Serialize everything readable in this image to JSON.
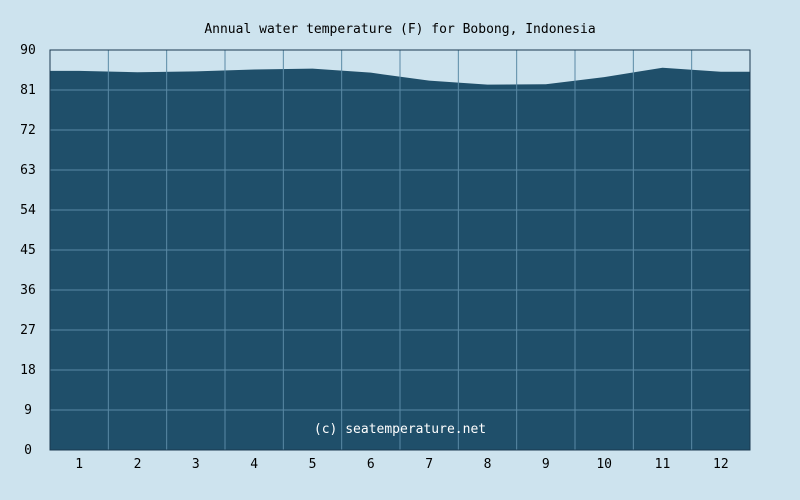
{
  "chart_data": {
    "type": "area",
    "title": "Annual water temperature (F) for Bobong, Indonesia",
    "watermark": "(c) seatemperature.net",
    "x": [
      1,
      2,
      3,
      4,
      5,
      6,
      7,
      8,
      9,
      10,
      11,
      12
    ],
    "x_tick_labels": [
      "1",
      "2",
      "3",
      "4",
      "5",
      "6",
      "7",
      "8",
      "9",
      "10",
      "11",
      "12"
    ],
    "y_ticks": [
      0,
      9,
      18,
      27,
      36,
      45,
      54,
      63,
      72,
      81,
      90
    ],
    "ylim": [
      0,
      90
    ],
    "series": [
      {
        "values": [
          85.3,
          85.0,
          85.2,
          85.6,
          85.8,
          84.9,
          83.1,
          82.2,
          82.3,
          83.9,
          86.0,
          85.1
        ]
      }
    ],
    "colors": {
      "background": "#cde3ee",
      "fill": "#1f4f6a",
      "grid": "#5a8aa5",
      "axis": "#1a3a50"
    },
    "grid": true,
    "legend": "none"
  }
}
